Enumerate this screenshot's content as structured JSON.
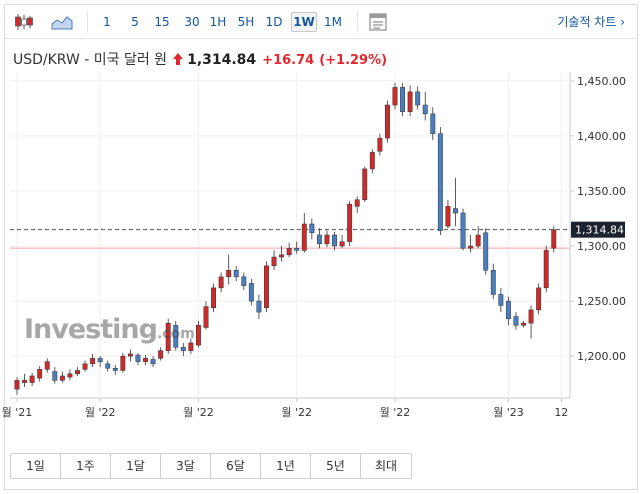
{
  "toolbar": {
    "candle_icon": "candlestick-icon",
    "area_icon": "area-chart-icon",
    "intervals": [
      "1",
      "5",
      "15",
      "30",
      "1H",
      "5H",
      "1D",
      "1W",
      "1M"
    ],
    "active_interval": "1W",
    "indicator_icon": "indicator-icon",
    "tech_chart_label": "기술적 차트 ›"
  },
  "instrument": {
    "name": "USD/KRW - 미국 달러 원",
    "price": "1,314.84",
    "change": "+16.74",
    "change_pct": "(+1.29%)"
  },
  "watermark": {
    "brand": "Investing",
    "suffix": ".com"
  },
  "periods": [
    "1일",
    "1주",
    "1달",
    "3달",
    "6달",
    "1년",
    "5년",
    "최대"
  ],
  "colors": {
    "up": "#cc2b2b",
    "down": "#4a7ebf",
    "accent": "#1256a0",
    "change": "#e0282f",
    "last_price_bg": "#1b2230",
    "prev_close_line": "#f0a0a0"
  },
  "chart_data": {
    "type": "candlestick",
    "title": "",
    "xlabel": "",
    "ylabel": "",
    "ylim": [
      1162,
      1458
    ],
    "y_ticks": [
      "1,450.00",
      "1,400.00",
      "1,350.00",
      "1,300.00",
      "1,250.00",
      "1,200.00"
    ],
    "y_tick_values": [
      1450,
      1400,
      1350,
      1300,
      1250,
      1200
    ],
    "x_ticks": [
      "월 '21",
      "월 '22",
      "월 '22",
      "월 '22",
      "월 '22",
      "월 '23",
      "12"
    ],
    "x_tick_index": [
      0,
      11,
      24,
      37,
      50,
      65,
      72
    ],
    "last_price_label": "1,314.84",
    "last_price": 1314.84,
    "prev_close": 1298.1,
    "grid": true,
    "candles": [
      [
        1170,
        1178,
        1165,
        1181
      ],
      [
        1176,
        1178,
        1172,
        1184
      ],
      [
        1176,
        1182,
        1173,
        1185
      ],
      [
        1180,
        1188,
        1177,
        1191
      ],
      [
        1188,
        1195,
        1185,
        1198
      ],
      [
        1186,
        1178,
        1175,
        1190
      ],
      [
        1178,
        1182,
        1176,
        1186
      ],
      [
        1181,
        1184,
        1178,
        1188
      ],
      [
        1184,
        1187,
        1182,
        1190
      ],
      [
        1188,
        1193,
        1186,
        1196
      ],
      [
        1193,
        1198,
        1190,
        1202
      ],
      [
        1198,
        1195,
        1190,
        1200
      ],
      [
        1193,
        1189,
        1186,
        1196
      ],
      [
        1189,
        1187,
        1183,
        1192
      ],
      [
        1187,
        1200,
        1185,
        1203
      ],
      [
        1200,
        1202,
        1195,
        1206
      ],
      [
        1201,
        1195,
        1192,
        1203
      ],
      [
        1195,
        1198,
        1192,
        1201
      ],
      [
        1197,
        1193,
        1190,
        1200
      ],
      [
        1198,
        1205,
        1196,
        1208
      ],
      [
        1205,
        1230,
        1202,
        1234
      ],
      [
        1228,
        1208,
        1205,
        1232
      ],
      [
        1208,
        1205,
        1200,
        1212
      ],
      [
        1205,
        1212,
        1202,
        1216
      ],
      [
        1210,
        1228,
        1208,
        1232
      ],
      [
        1226,
        1245,
        1224,
        1250
      ],
      [
        1244,
        1262,
        1240,
        1266
      ],
      [
        1262,
        1272,
        1258,
        1276
      ],
      [
        1272,
        1278,
        1265,
        1292
      ],
      [
        1278,
        1272,
        1268,
        1282
      ],
      [
        1272,
        1264,
        1260,
        1276
      ],
      [
        1266,
        1250,
        1246,
        1270
      ],
      [
        1250,
        1240,
        1234,
        1256
      ],
      [
        1244,
        1282,
        1240,
        1286
      ],
      [
        1282,
        1290,
        1278,
        1296
      ],
      [
        1290,
        1292,
        1286,
        1300
      ],
      [
        1292,
        1298,
        1290,
        1303
      ],
      [
        1298,
        1296,
        1293,
        1304
      ],
      [
        1296,
        1320,
        1294,
        1330
      ],
      [
        1320,
        1312,
        1306,
        1325
      ],
      [
        1310,
        1302,
        1298,
        1316
      ],
      [
        1302,
        1310,
        1299,
        1314
      ],
      [
        1310,
        1300,
        1296,
        1313
      ],
      [
        1300,
        1304,
        1298,
        1310
      ],
      [
        1304,
        1338,
        1300,
        1341
      ],
      [
        1336,
        1342,
        1330,
        1345
      ],
      [
        1342,
        1370,
        1340,
        1372
      ],
      [
        1370,
        1385,
        1366,
        1388
      ],
      [
        1386,
        1398,
        1382,
        1402
      ],
      [
        1398,
        1428,
        1394,
        1432
      ],
      [
        1428,
        1444,
        1424,
        1448
      ],
      [
        1444,
        1422,
        1418,
        1448
      ],
      [
        1422,
        1440,
        1418,
        1446
      ],
      [
        1440,
        1428,
        1424,
        1445
      ],
      [
        1428,
        1420,
        1414,
        1440
      ],
      [
        1420,
        1402,
        1396,
        1426
      ],
      [
        1402,
        1314,
        1310,
        1408
      ],
      [
        1318,
        1336,
        1316,
        1342
      ],
      [
        1334,
        1330,
        1318,
        1362
      ],
      [
        1330,
        1298,
        1296,
        1334
      ],
      [
        1298,
        1300,
        1294,
        1310
      ],
      [
        1300,
        1310,
        1298,
        1318
      ],
      [
        1312,
        1278,
        1274,
        1316
      ],
      [
        1278,
        1256,
        1252,
        1284
      ],
      [
        1256,
        1246,
        1240,
        1262
      ],
      [
        1250,
        1234,
        1228,
        1254
      ],
      [
        1236,
        1228,
        1224,
        1240
      ],
      [
        1228,
        1230,
        1226,
        1232
      ],
      [
        1230,
        1242,
        1216,
        1246
      ],
      [
        1242,
        1262,
        1238,
        1266
      ],
      [
        1262,
        1296,
        1258,
        1300
      ],
      [
        1298,
        1314.84,
        1294,
        1318
      ]
    ]
  }
}
